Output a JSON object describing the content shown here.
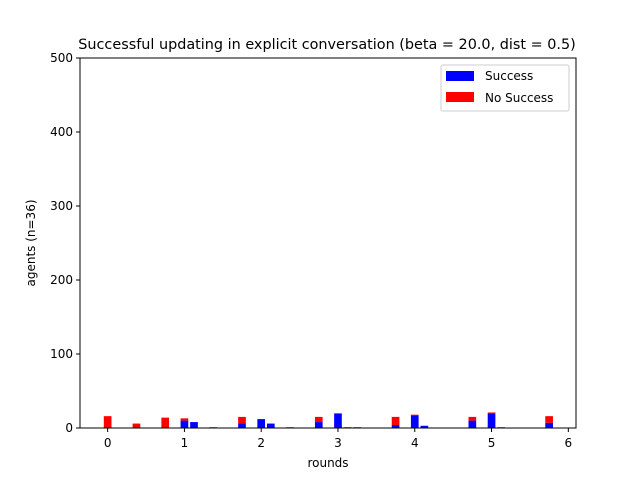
{
  "chart_data": {
    "type": "bar",
    "title": "Successful updating in explicit conversation (beta = 20.0, dist = 0.5)",
    "xlabel": "rounds",
    "ylabel": "agents (n=36)",
    "xlim": [
      -0.36,
      6.1
    ],
    "ylim": [
      0,
      500
    ],
    "xticks": [
      0,
      1,
      2,
      3,
      4,
      5,
      6
    ],
    "yticks": [
      0,
      100,
      200,
      300,
      400,
      500
    ],
    "grid": false,
    "legend_position": "upper right",
    "bar_width": 0.1,
    "x": [
      0.0,
      0.375,
      0.75,
      1.0,
      1.125,
      1.375,
      1.75,
      2.0,
      2.125,
      2.375,
      2.75,
      3.0,
      3.125,
      3.25,
      3.75,
      4.0,
      4.125,
      4.75,
      5.0,
      5.125,
      5.75
    ],
    "series": [
      {
        "name": "Success",
        "color": "#0000ff",
        "values": [
          0,
          0,
          0,
          10,
          8,
          1,
          6,
          12,
          6,
          1,
          8,
          19,
          1,
          1,
          4,
          17,
          3,
          10,
          20,
          1,
          7
        ]
      },
      {
        "name": "No Success",
        "color": "#ff0000",
        "values": [
          16,
          6,
          14,
          3,
          0,
          0,
          9,
          0,
          0,
          0,
          7,
          1,
          0,
          0,
          11,
          1,
          0,
          5,
          1,
          0,
          9
        ]
      }
    ]
  }
}
